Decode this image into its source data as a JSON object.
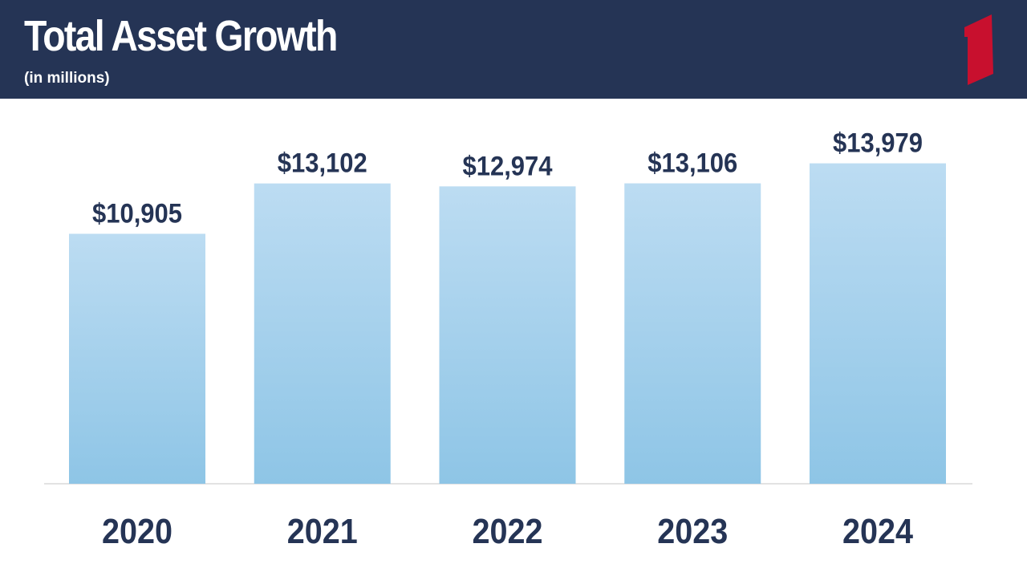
{
  "header": {
    "title": "Total Asset Growth",
    "subtitle": "(in millions)",
    "background": "#253455",
    "logo_color": "#c8102e",
    "logo_icon": "numeral-one-logo-icon"
  },
  "chart_data": {
    "type": "bar",
    "categories": [
      "2020",
      "2021",
      "2022",
      "2023",
      "2024"
    ],
    "values": [
      10905,
      13102,
      12974,
      13106,
      13979
    ],
    "value_labels": [
      "$10,905",
      "$13,102",
      "$12,974",
      "$13,106",
      "$13,979"
    ],
    "title": "Total Asset Growth",
    "subtitle": "(in millions)",
    "xlabel": "",
    "ylabel": "",
    "ylim": [
      0,
      14000
    ],
    "grid": false,
    "legend": "none",
    "bar_color_top": "#bcdcf2",
    "bar_color_bottom": "#8ec5e6",
    "text_color": "#253455"
  }
}
